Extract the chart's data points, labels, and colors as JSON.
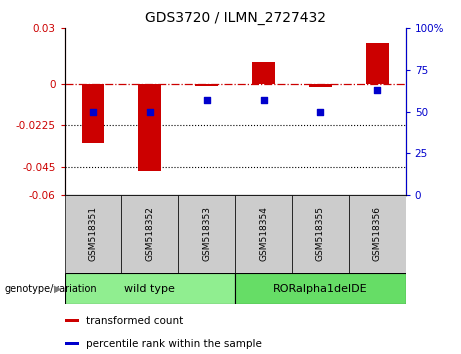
{
  "title": "GDS3720 / ILMN_2727432",
  "samples": [
    "GSM518351",
    "GSM518352",
    "GSM518353",
    "GSM518354",
    "GSM518355",
    "GSM518356"
  ],
  "transformed_count": [
    -0.032,
    -0.047,
    -0.001,
    0.012,
    -0.002,
    0.022
  ],
  "percentile_rank": [
    50,
    50,
    57,
    57,
    50,
    63
  ],
  "ylim_left": [
    -0.06,
    0.03
  ],
  "ylim_right": [
    0,
    100
  ],
  "yticks_left": [
    -0.06,
    -0.045,
    -0.0225,
    0,
    0.03
  ],
  "yticks_right": [
    0,
    25,
    50,
    75,
    100
  ],
  "ytick_labels_left": [
    "-0.06",
    "-0.045",
    "-0.0225",
    "0",
    "0.03"
  ],
  "ytick_labels_right": [
    "0",
    "25",
    "50",
    "75",
    "100%"
  ],
  "hlines_dotted": [
    -0.0225,
    -0.045
  ],
  "hline_dashdot": 0,
  "bar_color": "#cc0000",
  "scatter_color": "#0000cc",
  "bar_width": 0.4,
  "groups": [
    {
      "label": "wild type",
      "indices": [
        0,
        1,
        2
      ],
      "color": "#90ee90"
    },
    {
      "label": "RORalpha1delDE",
      "indices": [
        3,
        4,
        5
      ],
      "color": "#66dd66"
    }
  ],
  "group_label_prefix": "genotype/variation",
  "legend_items": [
    {
      "label": "transformed count",
      "color": "#cc0000"
    },
    {
      "label": "percentile rank within the sample",
      "color": "#0000cc"
    }
  ],
  "background_sample_row": "#cccccc",
  "title_fontsize": 10,
  "tick_fontsize": 7.5,
  "sample_fontsize": 6.5,
  "group_fontsize": 8,
  "legend_fontsize": 7.5
}
